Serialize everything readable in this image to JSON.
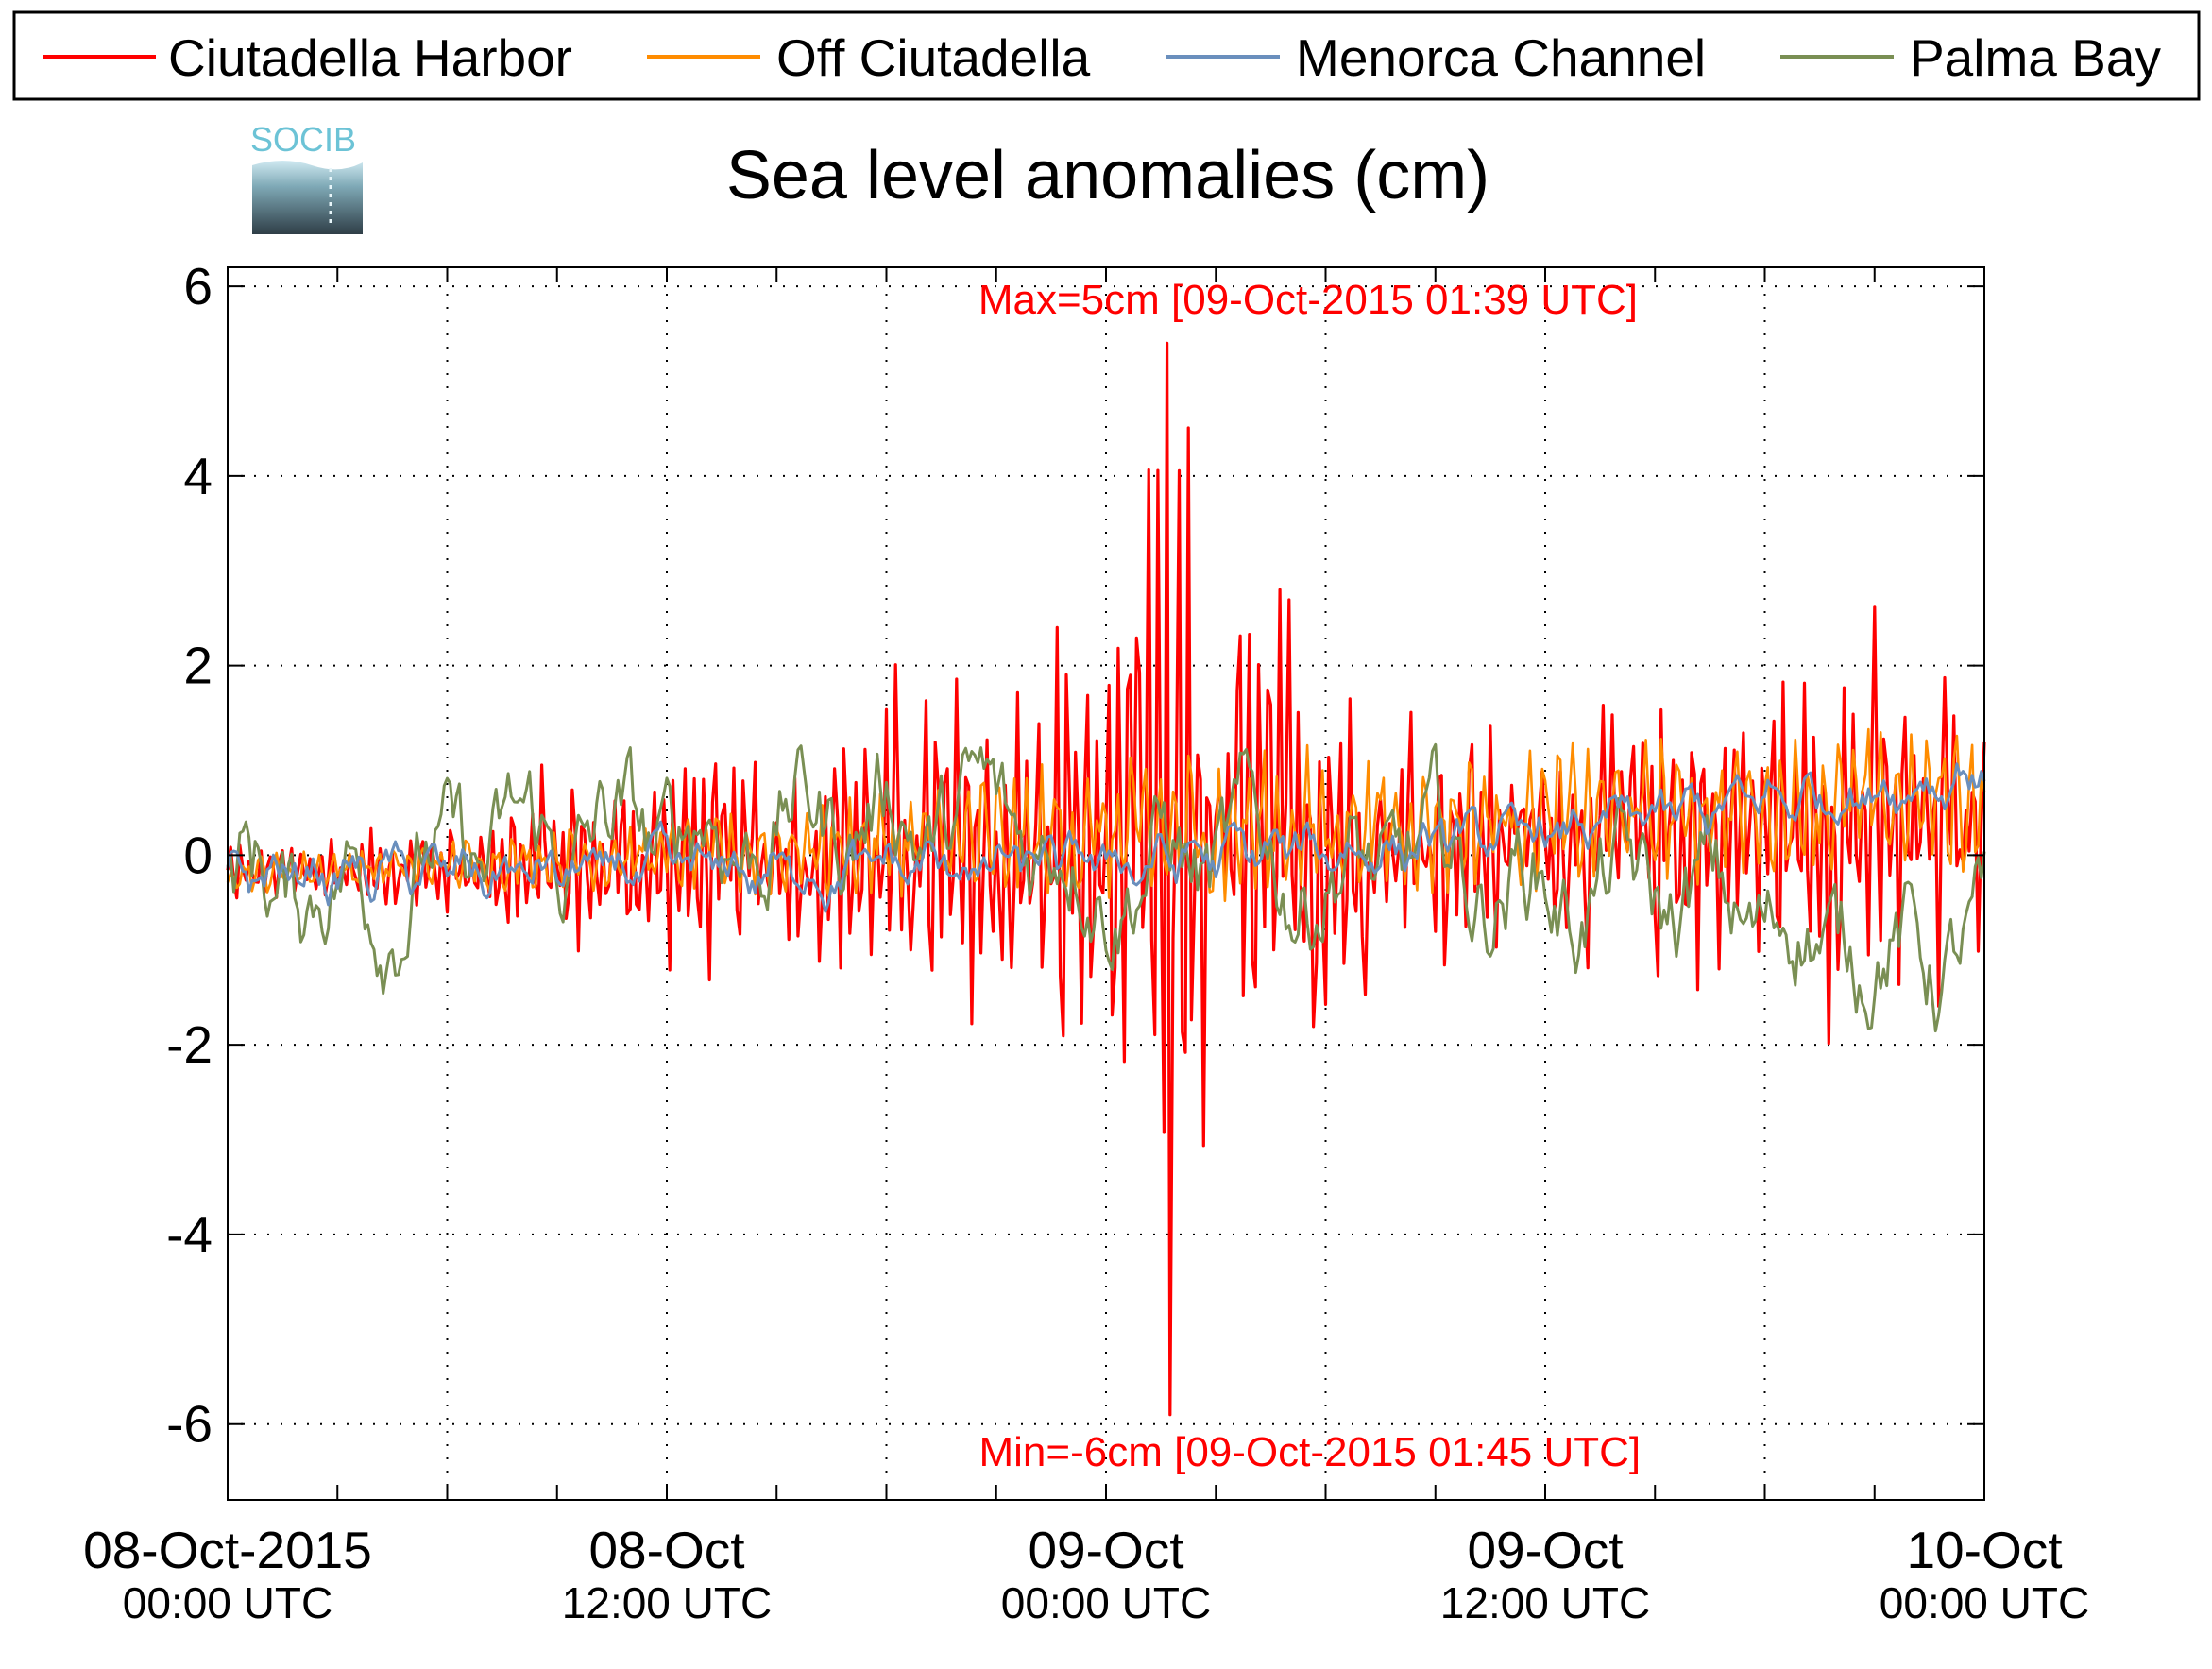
{
  "logo": {
    "text": "SOCIB"
  },
  "chart_data": {
    "type": "line",
    "title": "Sea level anomalies (cm)",
    "xlabel": "",
    "ylabel": "",
    "x_range": [
      "2015-10-08 00:00 UTC",
      "2015-10-10 00:00 UTC"
    ],
    "ylim": [
      -6.8,
      6.2
    ],
    "yticks": [
      -6,
      -4,
      -2,
      0,
      2,
      4,
      6
    ],
    "grid": true,
    "legend_position": "top",
    "xticks": [
      {
        "at": "2015-10-08 00:00 UTC",
        "line1": "08-Oct-2015",
        "line2": "00:00 UTC"
      },
      {
        "at": "2015-10-08 12:00 UTC",
        "line1": "08-Oct",
        "line2": "12:00 UTC"
      },
      {
        "at": "2015-10-09 00:00 UTC",
        "line1": "09-Oct",
        "line2": "00:00 UTC"
      },
      {
        "at": "2015-10-09 12:00 UTC",
        "line1": "09-Oct",
        "line2": "12:00 UTC"
      },
      {
        "at": "2015-10-10 00:00 UTC",
        "line1": "10-Oct",
        "line2": "00:00 UTC"
      }
    ],
    "annotations": {
      "max": {
        "text": "Max=5cm [09-Oct-2015 01:39 UTC]",
        "value": 5.4,
        "time": "2015-10-09 01:39 UTC"
      },
      "min": {
        "text": "Min=-6cm [09-Oct-2015 01:45 UTC]",
        "value": -5.9,
        "time": "2015-10-09 01:45 UTC"
      }
    },
    "series": [
      {
        "name": "Ciutadella Harbor",
        "color": "#ff0000",
        "amplitude_envelope": [
          [
            "2015-10-08 00:00 UTC",
            0.4
          ],
          [
            "2015-10-08 06:00 UTC",
            0.6
          ],
          [
            "2015-10-08 09:00 UTC",
            1.3
          ],
          [
            "2015-10-08 12:00 UTC",
            1.2
          ],
          [
            "2015-10-08 15:00 UTC",
            1.4
          ],
          [
            "2015-10-08 18:00 UTC",
            2.0
          ],
          [
            "2015-10-08 21:00 UTC",
            2.4
          ],
          [
            "2015-10-09 00:00 UTC",
            3.3
          ],
          [
            "2015-10-09 01:39 UTC",
            5.4
          ],
          [
            "2015-10-09 03:00 UTC",
            3.5
          ],
          [
            "2015-10-09 06:00 UTC",
            2.8
          ],
          [
            "2015-10-09 09:00 UTC",
            1.6
          ],
          [
            "2015-10-09 12:00 UTC",
            1.6
          ],
          [
            "2015-10-09 18:00 UTC",
            2.0
          ],
          [
            "2015-10-10 00:00 UTC",
            2.6
          ]
        ]
      },
      {
        "name": "Off Ciutadella",
        "color": "#ff8c00",
        "amplitude_envelope": [
          [
            "2015-10-08 00:00 UTC",
            0.2
          ],
          [
            "2015-10-08 12:00 UTC",
            0.4
          ],
          [
            "2015-10-09 00:00 UTC",
            1.0
          ],
          [
            "2015-10-09 12:00 UTC",
            0.8
          ],
          [
            "2015-10-10 00:00 UTC",
            0.9
          ]
        ]
      },
      {
        "name": "Menorca Channel",
        "color": "#6a8fbd",
        "trend": [
          [
            "2015-10-08 00:00 UTC",
            -0.2
          ],
          [
            "2015-10-08 12:00 UTC",
            -0.2
          ],
          [
            "2015-10-09 00:00 UTC",
            -0.1
          ],
          [
            "2015-10-09 12:00 UTC",
            0.2
          ],
          [
            "2015-10-10 00:00 UTC",
            0.9
          ]
        ]
      },
      {
        "name": "Palma Bay",
        "color": "#7a8f54",
        "trend": [
          [
            "2015-10-08 00:00 UTC",
            -0.4
          ],
          [
            "2015-10-08 12:00 UTC",
            0.2
          ],
          [
            "2015-10-08 18:00 UTC",
            0.5
          ],
          [
            "2015-10-09 00:00 UTC",
            0.0
          ],
          [
            "2015-10-09 12:00 UTC",
            -0.3
          ],
          [
            "2015-10-10 00:00 UTC",
            -1.1
          ]
        ]
      }
    ]
  }
}
